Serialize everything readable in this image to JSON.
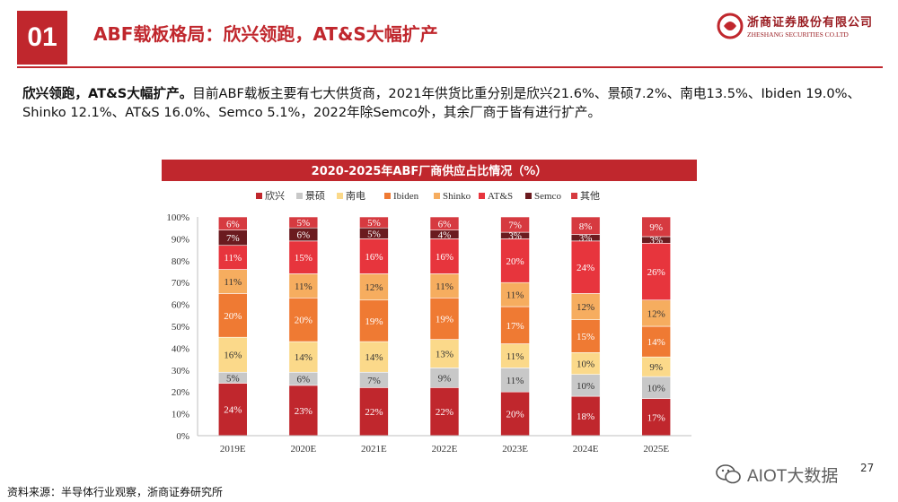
{
  "section": {
    "number": "01",
    "title": "ABF载板格局：欣兴领跑，AT&S大幅扩产"
  },
  "brand": {
    "name_cn": "浙商证券股份有限公司",
    "name_en": "ZHESHANG SECURITIES CO.LTD"
  },
  "summary": {
    "lead": "欣兴领跑，AT&S大幅扩产。",
    "body": "目前ABF载板主要有七大供货商，2021年供货比重分别是欣兴21.6%、景硕7.2%、南电13.5%、Ibiden 19.0%、Shinko 12.1%、AT&S 16.0%、Semco 5.1%，2022年除Semco外，其余厂商于皆有进行扩产。"
  },
  "chart_data": {
    "type": "bar",
    "stacked": true,
    "title": "2020-2025年ABF厂商供应占比情况（%）",
    "categories": [
      "2019E",
      "2020E",
      "2021E",
      "2022E",
      "2023E",
      "2024E",
      "2025E"
    ],
    "yticks": [
      "0%",
      "10%",
      "20%",
      "30%",
      "40%",
      "50%",
      "60%",
      "70%",
      "80%",
      "90%",
      "100%"
    ],
    "ylim": [
      0,
      100
    ],
    "xlabel": "",
    "ylabel": "",
    "legend_position": "top",
    "series": [
      {
        "name": "欣兴",
        "color": "#c0272d",
        "values": [
          24,
          23,
          22,
          22,
          20,
          18,
          17
        ]
      },
      {
        "name": "景硕",
        "color": "#c8c8c8",
        "values": [
          5,
          6,
          7,
          9,
          11,
          10,
          10
        ]
      },
      {
        "name": "南电",
        "color": "#fbd98a",
        "values": [
          16,
          14,
          14,
          13,
          11,
          10,
          9
        ]
      },
      {
        "name": "Ibiden",
        "color": "#ef7a33",
        "values": [
          20,
          20,
          19,
          19,
          17,
          15,
          14
        ]
      },
      {
        "name": "Shinko",
        "color": "#f6ad5f",
        "values": [
          11,
          11,
          12,
          11,
          11,
          12,
          12
        ]
      },
      {
        "name": "AT&S",
        "color": "#e7353d",
        "values": [
          11,
          15,
          16,
          16,
          20,
          24,
          26
        ]
      },
      {
        "name": "Semco",
        "color": "#6b1b1f",
        "values": [
          7,
          6,
          5,
          4,
          3,
          3,
          3
        ]
      },
      {
        "name": "其他",
        "color": "#d63a40",
        "values": [
          6,
          5,
          5,
          6,
          7,
          8,
          9
        ]
      }
    ],
    "label_colors": [
      "#ffffff",
      "#333333",
      "#333333",
      "#ffffff",
      "#333333",
      "#ffffff",
      "#ffffff",
      "#ffffff"
    ]
  },
  "source": "资料来源：半导体行业观察，浙商证券研究所",
  "watermark": "AIOT大数据",
  "page_number": "27"
}
